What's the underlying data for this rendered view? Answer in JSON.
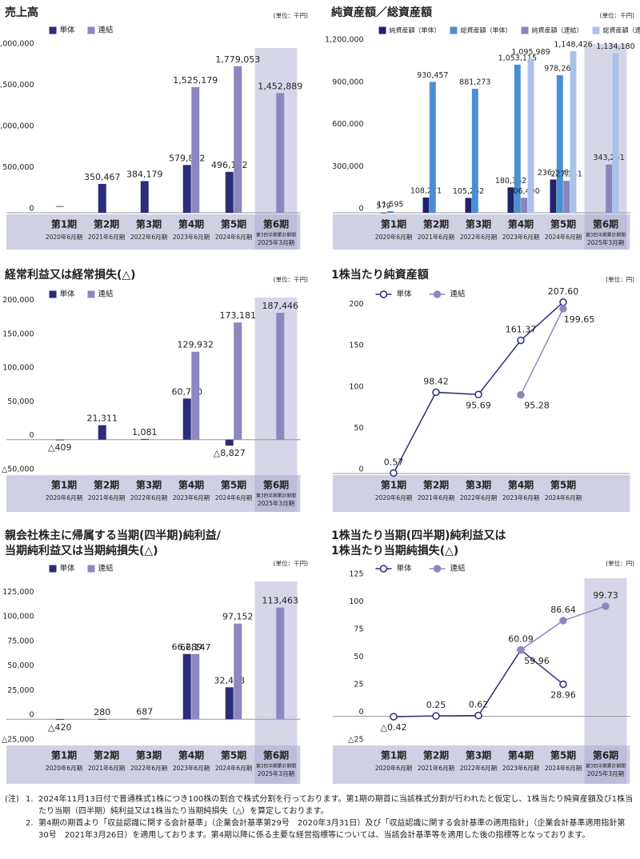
{
  "chart_data": [
    {
      "type": "bar",
      "title": [
        "売上高"
      ],
      "unit": "(単位：千円)",
      "categories": [
        "第1期",
        "第2期",
        "第3期",
        "第4期",
        "第5期",
        "第6期"
      ],
      "periods": [
        [
          "2020年6月期"
        ],
        [
          "2021年6月期"
        ],
        [
          "2022年6月期"
        ],
        [
          "2023年6月期"
        ],
        [
          "2024年6月期"
        ],
        [
          "第3四半期累計期間",
          "2025年3月期"
        ]
      ],
      "series": [
        {
          "name": "単体",
          "color": "#2b2d78",
          "values": [
            null,
            350467,
            384179,
            579812,
            496192,
            null
          ],
          "value_labels": [
            "—",
            "350,467",
            "384,179",
            "579,812",
            "496,192",
            null
          ]
        },
        {
          "name": "連結",
          "color": "#8c87c0",
          "values": [
            null,
            null,
            null,
            1525179,
            1779053,
            1452889
          ],
          "value_labels": [
            null,
            null,
            null,
            "1,525,179",
            "1,779,053",
            "1,452,889"
          ]
        }
      ],
      "ylim": [
        0,
        2000000
      ],
      "yticks": [
        0,
        {
          "value": 500000,
          "label": "500,000"
        },
        {
          "value": 1000000,
          "label": "1,000,000"
        },
        {
          "value": 1500000,
          "label": "1,500,000"
        },
        {
          "value": 2000000,
          "label": "2,000,000"
        }
      ]
    },
    {
      "type": "bar",
      "title": [
        "純資産額／総資産額"
      ],
      "unit": "(単位：千円)",
      "categories": [
        "第1期",
        "第2期",
        "第3期",
        "第4期",
        "第5期",
        "第6期"
      ],
      "periods": [
        [
          "2020年6月期"
        ],
        [
          "2021年6月期"
        ],
        [
          "2022年6月期"
        ],
        [
          "2023年6月期"
        ],
        [
          "2024年6月期"
        ],
        [
          "第3四半期累計期間",
          "2025年3月期"
        ]
      ],
      "series": [
        {
          "name": "純資産額（単体）",
          "color": "#1e236e",
          "values": [
            579,
            108271,
            105262,
            180362,
            236188,
            null
          ],
          "value_labels": [
            "579",
            "108,271",
            "105,262",
            "180,362",
            "236,188",
            null
          ]
        },
        {
          "name": "総資産額（単体）",
          "color": "#4a8fd2",
          "values": [
            11595,
            930457,
            881273,
            1053115,
            978268,
            null
          ],
          "value_labels": [
            "11,595",
            "930,457",
            "881,273",
            "1,053,115",
            "978,268",
            null
          ]
        },
        {
          "name": "純資産額（連結）",
          "color": "#8a84be",
          "values": [
            null,
            null,
            null,
            106490,
            227141,
            343251
          ],
          "value_labels": [
            null,
            null,
            null,
            "106,490",
            "227,141",
            "343,251"
          ]
        },
        {
          "name": "総資産額（連結）",
          "color": "#a8c3e9",
          "values": [
            null,
            null,
            null,
            1095989,
            1148426,
            1134180
          ],
          "value_labels": [
            null,
            null,
            null,
            "1,095,989",
            "1,148,426",
            "1,134,180"
          ]
        }
      ],
      "ylim": [
        0,
        1200000
      ],
      "yticks": [
        0,
        {
          "value": 300000,
          "label": "300,000"
        },
        {
          "value": 600000,
          "label": "600,000"
        },
        {
          "value": 900000,
          "label": "900,000"
        },
        {
          "value": 1200000,
          "label": "1,200,000"
        }
      ]
    },
    {
      "type": "bar",
      "title": [
        "経常利益又は経常損失(△)"
      ],
      "unit": "(単位：千円)",
      "categories": [
        "第1期",
        "第2期",
        "第3期",
        "第4期",
        "第5期",
        "第6期"
      ],
      "periods": [
        [
          "2020年6月期"
        ],
        [
          "2021年6月期"
        ],
        [
          "2022年6月期"
        ],
        [
          "2023年6月期"
        ],
        [
          "2024年6月期"
        ],
        [
          "第3四半期累計期間",
          "2025年3月期"
        ]
      ],
      "series": [
        {
          "name": "単体",
          "color": "#2b2d78",
          "values": [
            -409,
            21311,
            1081,
            60770,
            -8827,
            null
          ],
          "value_labels": [
            "△409",
            "21,311",
            "1,081",
            "60,770",
            "△8,827",
            null
          ]
        },
        {
          "name": "連結",
          "color": "#8c87c0",
          "values": [
            null,
            null,
            null,
            129932,
            173181,
            187446
          ],
          "value_labels": [
            null,
            null,
            null,
            "129,932",
            "173,181",
            "187,446"
          ]
        }
      ],
      "ylim": [
        -50000,
        210000
      ],
      "yticks": [
        {
          "value": -50000,
          "label": "△50,000"
        },
        0,
        {
          "value": 50000,
          "label": "50,000"
        },
        {
          "value": 100000,
          "label": "100,000"
        },
        {
          "value": 150000,
          "label": "150,000"
        },
        {
          "value": 200000,
          "label": "200,000"
        }
      ]
    },
    {
      "type": "line",
      "title": [
        "1株当たり純資産額"
      ],
      "unit": "(単位：円)",
      "categories": [
        "第1期",
        "第2期",
        "第3期",
        "第4期",
        "第5期"
      ],
      "periods": [
        [
          "2020年6月期"
        ],
        [
          "2021年6月期"
        ],
        [
          "2022年6月期"
        ],
        [
          "2023年6月期"
        ],
        [
          "2024年6月期"
        ]
      ],
      "series": [
        {
          "name": "単体",
          "color": "#2b2d78",
          "values": [
            0.57,
            98.42,
            95.69,
            161.37,
            207.6
          ],
          "value_labels": [
            "0.57",
            "98.42",
            "95.69",
            "161.37",
            "207.60"
          ]
        },
        {
          "name": "連結",
          "color": "#8c87c0",
          "values": [
            null,
            null,
            null,
            95.28,
            199.65
          ],
          "value_labels": [
            null,
            null,
            null,
            "95.28",
            "199.65"
          ]
        }
      ],
      "ylim": [
        0,
        220
      ],
      "yticks": [
        0,
        50,
        100,
        150,
        200
      ]
    },
    {
      "type": "bar",
      "title": [
        "親会社株主に帰属する当期(四半期)純利益/",
        "当期純利益又は当期純損失(△)"
      ],
      "unit": "(単位：千円)",
      "categories": [
        "第1期",
        "第2期",
        "第3期",
        "第4期",
        "第5期",
        "第6期"
      ],
      "periods": [
        [
          "2020年6月期"
        ],
        [
          "2021年6月期"
        ],
        [
          "2022年6月期"
        ],
        [
          "2023年6月期"
        ],
        [
          "2024年6月期"
        ],
        [
          "第3四半期累計期間",
          "2025年3月期"
        ]
      ],
      "series": [
        {
          "name": "単体",
          "color": "#2b2d78",
          "values": [
            -420,
            280,
            687,
            66289,
            32478,
            null
          ],
          "value_labels": [
            "△420",
            "280",
            "687",
            "66,289",
            "32,478",
            null
          ]
        },
        {
          "name": "連結",
          "color": "#8c87c0",
          "values": [
            null,
            null,
            null,
            66147,
            97152,
            113463
          ],
          "value_labels": [
            null,
            null,
            null,
            "66,147",
            "97,152",
            "113,463"
          ]
        }
      ],
      "ylim": [
        -25000,
        140000
      ],
      "yticks": [
        {
          "value": -25000,
          "label": "△25,000"
        },
        0,
        {
          "value": 25000,
          "label": "25,000"
        },
        {
          "value": 50000,
          "label": "50,000"
        },
        {
          "value": 75000,
          "label": "75,000"
        },
        {
          "value": 100000,
          "label": "100,000"
        },
        {
          "value": 125000,
          "label": "125,000"
        }
      ]
    },
    {
      "type": "line",
      "title": [
        "1株当たり当期(四半期)純利益又は",
        "1株当たり当期純損失(△)"
      ],
      "unit": "(単位：円)",
      "categories": [
        "第1期",
        "第2期",
        "第3期",
        "第4期",
        "第5期",
        "第6期"
      ],
      "periods": [
        [
          "2020年6月期"
        ],
        [
          "2021年6月期"
        ],
        [
          "2022年6月期"
        ],
        [
          "2023年6月期"
        ],
        [
          "2024年6月期"
        ],
        [
          "第3四半期累計期間",
          "2025年3月期"
        ]
      ],
      "series": [
        {
          "name": "単体",
          "color": "#2b2d78",
          "values": [
            -0.42,
            0.25,
            0.62,
            60.09,
            28.96,
            null
          ],
          "value_labels": [
            "△0.42",
            "0.25",
            "0.62",
            "60.09",
            "28.96",
            null
          ]
        },
        {
          "name": "連結",
          "color": "#8c87c0",
          "values": [
            null,
            null,
            null,
            59.96,
            86.64,
            99.73
          ],
          "value_labels": [
            null,
            null,
            null,
            "59.96",
            "86.64",
            "99.73"
          ]
        }
      ],
      "ylim": [
        -25,
        125
      ],
      "yticks": [
        {
          "value": -25,
          "label": "△25"
        },
        0,
        25,
        50,
        75,
        100,
        125
      ]
    }
  ],
  "notes": {
    "label": "(注)",
    "items": [
      {
        "number": "1.",
        "text": "2024年11月13日付で普通株式1株につき100株の割合で株式分割を行っております。第1期の期首に当該株式分割が行われたと仮定し、1株当たり純資産額及び1株当たり当期（四半期）純利益又は1株当たり当期純損失（△）を算定しております。"
      },
      {
        "number": "2.",
        "text": "第4期の期首より「収益認識に関する会計基準」（企業会計基準第29号　2020年3月31日）及び「収益認識に関する会計基準の適用指針」（企業会計基準適用指針第30号　2021年3月26日）を適用しております。第4期以降に係る主要な経営指標等については、当該会計基準等を適用した後の指標等となっております。"
      }
    ]
  }
}
